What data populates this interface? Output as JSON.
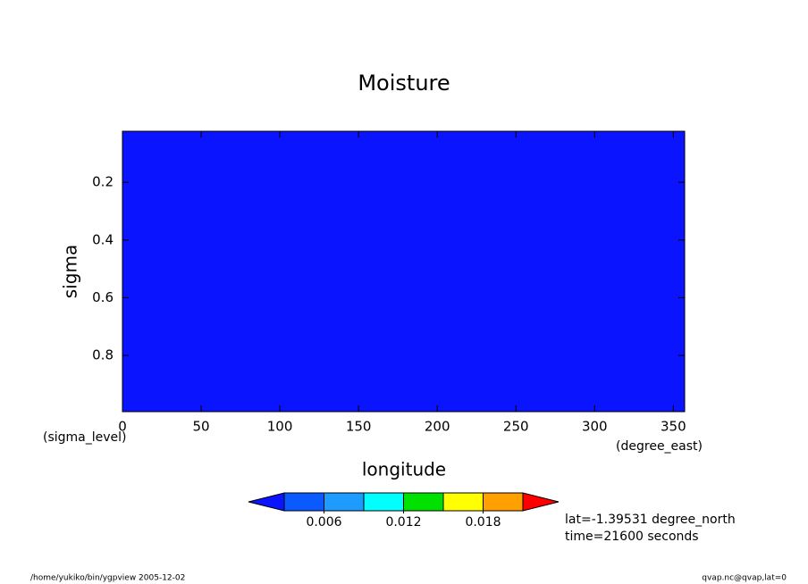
{
  "chart_data": {
    "type": "contour",
    "title": "Moisture",
    "xlabel": "longitude",
    "xunit": "(degree_east)",
    "ylabel": "sigma",
    "yunit": "(sigma_level)",
    "xlim": [
      0,
      357.1875
    ],
    "xticks": [
      0,
      50,
      100,
      150,
      200,
      250,
      300,
      350
    ],
    "ylim": [
      0.995,
      0.023
    ],
    "yticks": [
      0.2,
      0.4,
      0.6,
      0.8
    ],
    "fill_color": "#0a14ff",
    "colorbar": {
      "levels": [
        0.003,
        0.006,
        0.009,
        0.012,
        0.015,
        0.018,
        0.021
      ],
      "colors": [
        "#0a14ff",
        "#0a5aff",
        "#1e9bff",
        "#00ffff",
        "#00e100",
        "#ffff00",
        "#ffa000",
        "#ff0000"
      ],
      "ticks": [
        0.006,
        0.012,
        0.018
      ]
    },
    "annotations": [
      "lat=-1.39531 degree_north",
      "time=21600 seconds"
    ],
    "footer_left": "/home/yukiko/bin/ygpview  2005-12-02",
    "footer_right": "qvap.nc@qvap,lat=0"
  }
}
